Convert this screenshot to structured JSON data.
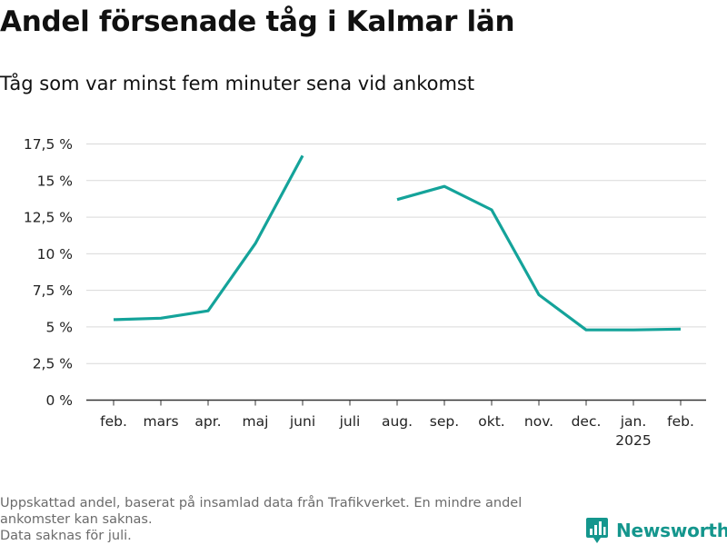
{
  "title": "Andel försenade tåg i Kalmar län",
  "subtitle": "Tåg som var minst fem minuter sena vid ankomst",
  "footnote": {
    "line1": "Uppskattad andel, baserat på insamlad data från Trafikverket. En mindre andel ankomster kan saknas.",
    "line2": "Data saknas för juli."
  },
  "brand": {
    "name": "Newsworthy",
    "icon": "newsworthy-logo-icon",
    "color": "#14968d"
  },
  "chart_data": {
    "type": "line",
    "title": "Andel försenade tåg i Kalmar län",
    "subtitle": "Tåg som var minst fem minuter sena vid ankomst",
    "xlabel": "",
    "ylabel": "",
    "categories": [
      "feb.",
      "mars",
      "apr.",
      "maj",
      "juni",
      "juli",
      "aug.",
      "sep.",
      "okt.",
      "nov.",
      "dec.",
      "jan.",
      "feb."
    ],
    "category_sublabels": [
      "",
      "",
      "",
      "",
      "",
      "",
      "",
      "",
      "",
      "",
      "",
      "2025",
      ""
    ],
    "series": [
      {
        "color": "#14a39a",
        "values": [
          5.5,
          5.6,
          6.1,
          10.7,
          16.7,
          null,
          13.7,
          14.6,
          13.0,
          7.2,
          4.8,
          4.8,
          4.85
        ]
      }
    ],
    "ylim": [
      0,
      17.5
    ],
    "yticks": [
      0,
      2.5,
      5,
      7.5,
      10,
      12.5,
      15,
      17.5
    ],
    "ytick_labels": [
      "0 %",
      "2,5 %",
      "5 %",
      "7,5 %",
      "10 %",
      "12,5 %",
      "15 %",
      "17,5 %"
    ],
    "grid": true,
    "legend": "none"
  }
}
